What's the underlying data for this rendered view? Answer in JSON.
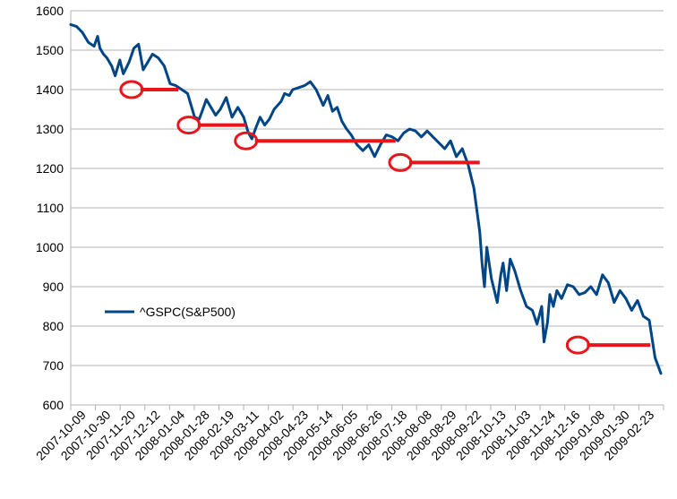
{
  "chart_data": {
    "type": "line",
    "title": "",
    "xlabel": "",
    "ylabel": "",
    "ylim": [
      600,
      1600
    ],
    "grid": true,
    "legend": {
      "position": "center-left",
      "entries": [
        "^GSPC(S&P500)"
      ]
    },
    "yticks": [
      600,
      700,
      800,
      900,
      1000,
      1100,
      1200,
      1300,
      1400,
      1500,
      1600
    ],
    "xtick_labels": [
      "2007-10-09",
      "2007-10-30",
      "2007-11-20",
      "2007-12-12",
      "2008-01-04",
      "2008-01-28",
      "2008-02-19",
      "2008-03-11",
      "2008-04-02",
      "2008-04-23",
      "2008-05-14",
      "2008-06-05",
      "2008-06-26",
      "2008-07-18",
      "2008-08-08",
      "2008-08-29",
      "2008-09-22",
      "2008-10-13",
      "2008-11-03",
      "2008-11-24",
      "2008-12-16",
      "2009-01-08",
      "2009-01-30",
      "2009-02-23"
    ],
    "series": [
      {
        "name": "^GSPC(S&P500)",
        "color": "#004586",
        "x_index": [
          0,
          5,
          10,
          15,
          20,
          23,
          25,
          28,
          31,
          35,
          38,
          42,
          45,
          50,
          54,
          58,
          62,
          66,
          70,
          75,
          80,
          85,
          90,
          95,
          100,
          103,
          106,
          110,
          113,
          116,
          120,
          124,
          128,
          133,
          138,
          143,
          148,
          152,
          155,
          158,
          162,
          166,
          170,
          174,
          177,
          180,
          183,
          187,
          190,
          195,
          200,
          205,
          210,
          213,
          216,
          220,
          224,
          228,
          232,
          236,
          240,
          245,
          250,
          255,
          260,
          265,
          270,
          275,
          280,
          285,
          290,
          295,
          300,
          305,
          310,
          315,
          320,
          325,
          330,
          335,
          340,
          345,
          350,
          352,
          354,
          356,
          360,
          365,
          368,
          370,
          373,
          376,
          380,
          385,
          390,
          395,
          399,
          403,
          405,
          408,
          410,
          413,
          416,
          420,
          425,
          430,
          435,
          440,
          445,
          450,
          455,
          460,
          465,
          470,
          475,
          480,
          485,
          490,
          495,
          500,
          505
        ],
        "values": [
          1565,
          1560,
          1545,
          1520,
          1510,
          1535,
          1505,
          1490,
          1480,
          1460,
          1435,
          1475,
          1440,
          1470,
          1505,
          1515,
          1450,
          1470,
          1490,
          1480,
          1460,
          1415,
          1410,
          1400,
          1390,
          1360,
          1330,
          1325,
          1350,
          1375,
          1355,
          1335,
          1350,
          1380,
          1330,
          1355,
          1330,
          1290,
          1275,
          1300,
          1330,
          1310,
          1325,
          1350,
          1360,
          1370,
          1390,
          1385,
          1400,
          1405,
          1410,
          1420,
          1400,
          1380,
          1360,
          1385,
          1345,
          1355,
          1320,
          1300,
          1285,
          1260,
          1245,
          1260,
          1230,
          1260,
          1285,
          1280,
          1270,
          1290,
          1300,
          1295,
          1280,
          1295,
          1280,
          1265,
          1250,
          1270,
          1230,
          1250,
          1210,
          1150,
          1040,
          960,
          900,
          1000,
          920,
          860,
          930,
          960,
          890,
          970,
          940,
          890,
          850,
          840,
          805,
          850,
          760,
          810,
          880,
          850,
          890,
          870,
          905,
          900,
          880,
          885,
          900,
          880,
          930,
          910,
          860,
          890,
          870,
          840,
          865,
          825,
          815,
          720,
          680
        ]
      }
    ],
    "annotations": {
      "color": "#e8161b",
      "marks": [
        {
          "start_x_index": 52,
          "end_x_index": 92,
          "value": 1400
        },
        {
          "start_x_index": 101,
          "end_x_index": 150,
          "value": 1310
        },
        {
          "start_x_index": 150,
          "end_x_index": 278,
          "value": 1270
        },
        {
          "start_x_index": 282,
          "end_x_index": 350,
          "value": 1215
        },
        {
          "start_x_index": 434,
          "end_x_index": 496,
          "value": 752
        }
      ]
    }
  }
}
